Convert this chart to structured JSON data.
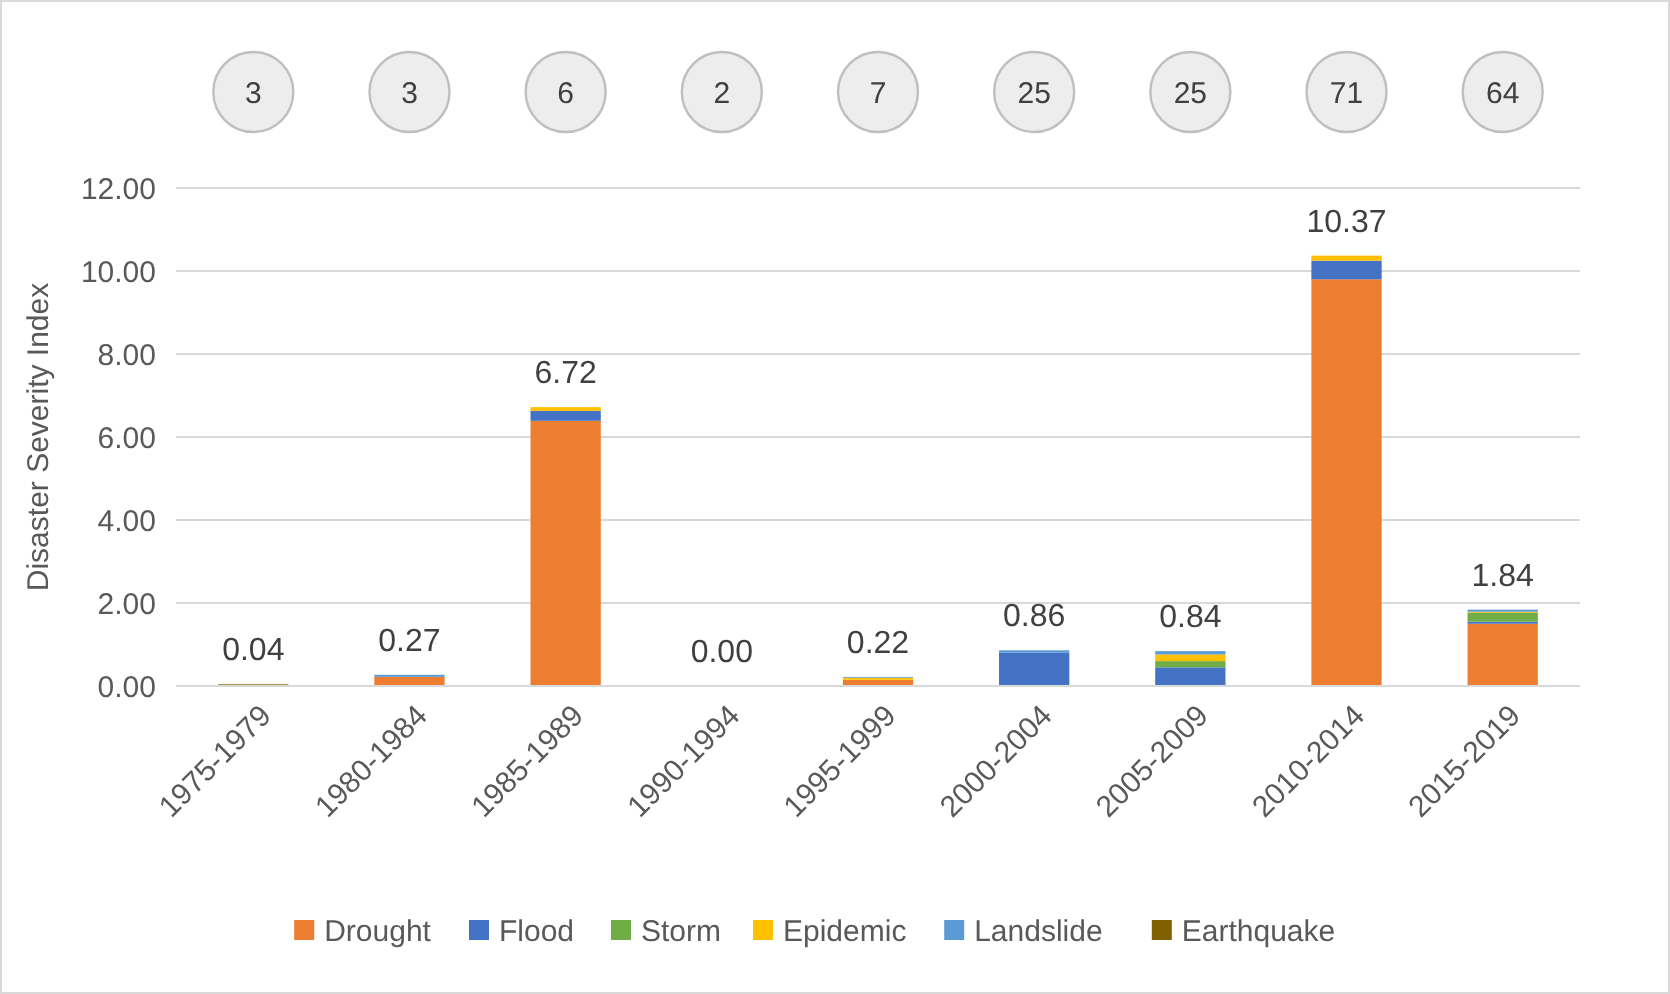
{
  "chart_data": {
    "type": "bar",
    "stacked": true,
    "ylabel": "Disaster Severity Index",
    "categories": [
      "1975-1979",
      "1980-1984",
      "1985-1989",
      "1990-1994",
      "1995-1999",
      "2000-2004",
      "2005-2009",
      "2010-2014",
      "2015-2019"
    ],
    "series": [
      {
        "name": "Drought",
        "color": "#ed7d31",
        "values": [
          0,
          0.22,
          6.39,
          0,
          0.15,
          0,
          0,
          9.8,
          1.5
        ]
      },
      {
        "name": "Flood",
        "color": "#4472c4",
        "values": [
          0,
          0,
          0.24,
          0,
          0,
          0.8,
          0.45,
          0.45,
          0.05
        ]
      },
      {
        "name": "Storm",
        "color": "#70ad47",
        "values": [
          0,
          0,
          0,
          0,
          0,
          0,
          0.15,
          0,
          0.22
        ]
      },
      {
        "name": "Epidemic",
        "color": "#ffc000",
        "values": [
          0,
          0,
          0.09,
          0,
          0.05,
          0,
          0.16,
          0.12,
          0.02
        ]
      },
      {
        "name": "Landslide",
        "color": "#5b9bd5",
        "values": [
          0,
          0.05,
          0,
          0,
          0.02,
          0.06,
          0.08,
          0,
          0.05
        ]
      },
      {
        "name": "Earthquake",
        "color": "#806000",
        "values": [
          0.04,
          0,
          0,
          0,
          0,
          0,
          0,
          0,
          0
        ]
      }
    ],
    "totals": [
      "0.04",
      "0.27",
      "6.72",
      "0.00",
      "0.22",
      "0.86",
      "0.84",
      "10.37",
      "1.84"
    ],
    "annotations": [
      "3",
      "3",
      "6",
      "2",
      "7",
      "25",
      "25",
      "71",
      "64"
    ],
    "ylim": [
      0,
      12
    ],
    "yticks": [
      {
        "value": 0,
        "label": "0.00"
      },
      {
        "value": 2,
        "label": "2.00"
      },
      {
        "value": 4,
        "label": "4.00"
      },
      {
        "value": 6,
        "label": "6.00"
      },
      {
        "value": 8,
        "label": "8.00"
      },
      {
        "value": 10,
        "label": "10.00"
      },
      {
        "value": 12,
        "label": "12.00"
      }
    ],
    "grid": "y",
    "legend": "bottom"
  }
}
